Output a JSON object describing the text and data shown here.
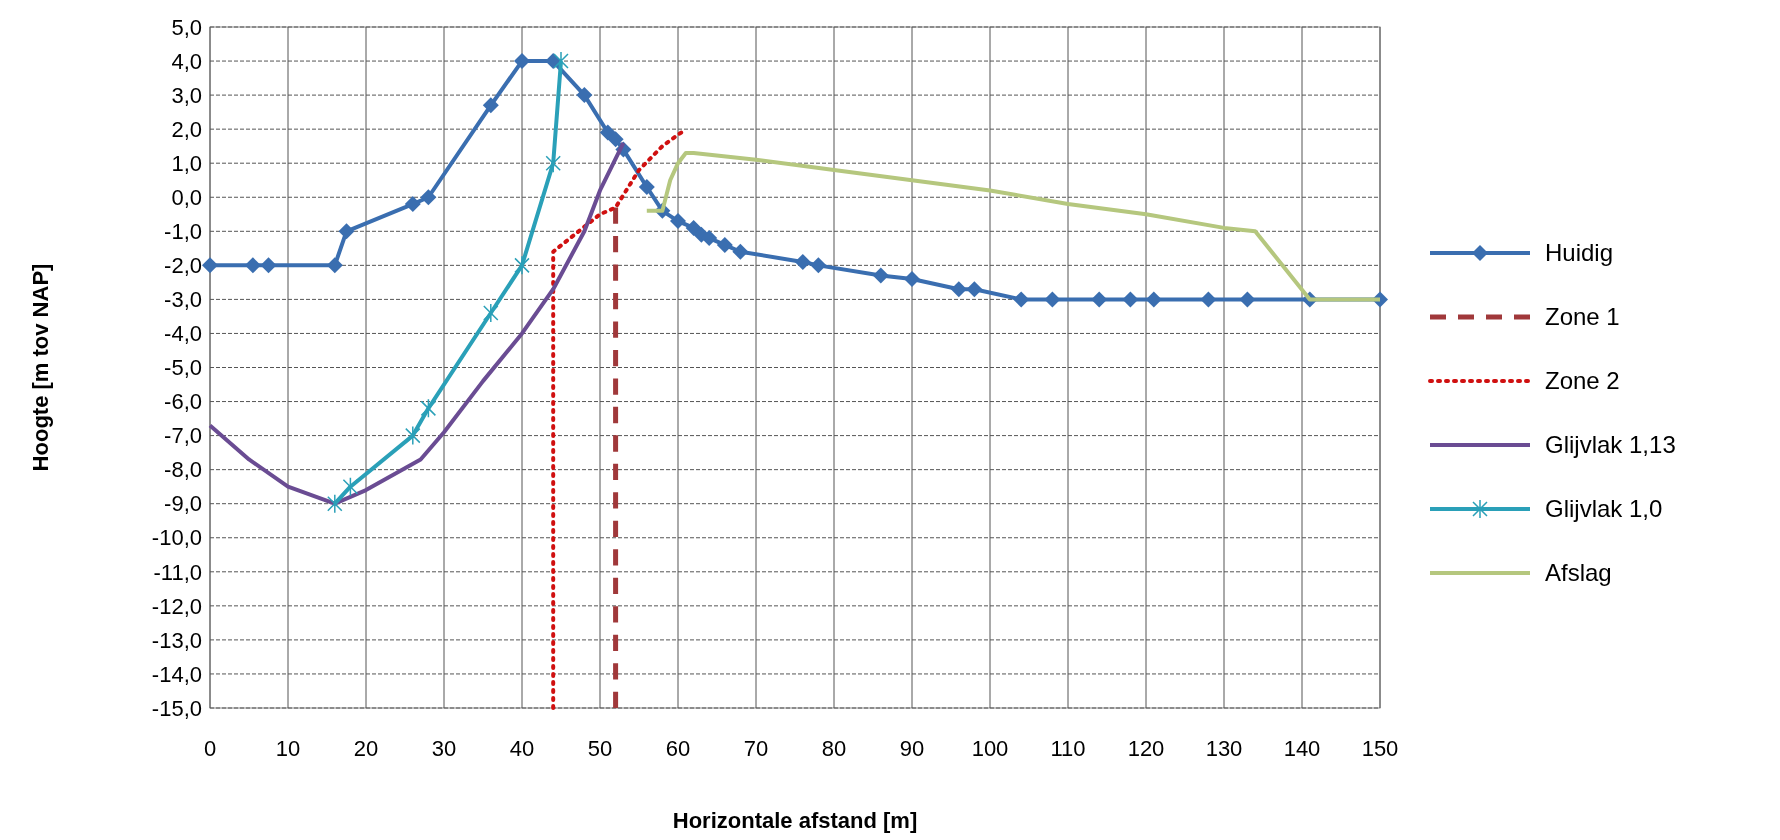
{
  "chart_data": {
    "type": "line",
    "xlabel": "Horizontale afstand [m]",
    "ylabel": "Hoogte [m tov NAP]",
    "xlim": [
      0,
      150
    ],
    "xticks": [
      0,
      10,
      20,
      30,
      40,
      50,
      60,
      70,
      80,
      90,
      100,
      110,
      120,
      130,
      140,
      150
    ],
    "ylim": [
      -15,
      5
    ],
    "yticks": [
      {
        "value": 5,
        "label": "5,0"
      },
      {
        "value": 4,
        "label": "4,0"
      },
      {
        "value": 3,
        "label": "3,0"
      },
      {
        "value": 2,
        "label": "2,0"
      },
      {
        "value": 1,
        "label": "1,0"
      },
      {
        "value": 0,
        "label": "0,0"
      },
      {
        "value": -1,
        "label": "-1,0"
      },
      {
        "value": -2,
        "label": "-2,0"
      },
      {
        "value": -3,
        "label": "-3,0"
      },
      {
        "value": -4,
        "label": "-4,0"
      },
      {
        "value": -5,
        "label": "-5,0"
      },
      {
        "value": -6,
        "label": "-6,0"
      },
      {
        "value": -7,
        "label": "-7,0"
      },
      {
        "value": -8,
        "label": "-8,0"
      },
      {
        "value": -9,
        "label": "-9,0"
      },
      {
        "value": -10,
        "label": "-10,0"
      },
      {
        "value": -11,
        "label": "-11,0"
      },
      {
        "value": -12,
        "label": "-12,0"
      },
      {
        "value": -13,
        "label": "-13,0"
      },
      {
        "value": -14,
        "label": "-14,0"
      },
      {
        "value": -15,
        "label": "-15,0"
      }
    ],
    "grid": true,
    "legend": "right",
    "series": [
      {
        "name": "Huidig",
        "color": "#3a6eb0",
        "marker": "diamond",
        "line_style": "solid",
        "x": [
          0,
          5.5,
          7.5,
          16,
          17.5,
          26,
          28,
          36,
          40,
          44,
          48,
          51,
          52,
          53,
          56,
          58,
          60,
          62,
          63,
          64,
          66,
          68,
          76,
          78,
          86,
          90,
          96,
          98,
          104,
          108,
          114,
          118,
          121,
          128,
          133,
          141,
          150
        ],
        "values": [
          -2,
          -2,
          -2,
          -2,
          -1,
          -0.2,
          0,
          2.7,
          4,
          4,
          3,
          1.9,
          1.7,
          1.4,
          0.3,
          -0.4,
          -0.7,
          -0.9,
          -1.1,
          -1.2,
          -1.4,
          -1.6,
          -1.9,
          -2,
          -2.3,
          -2.4,
          -2.7,
          -2.7,
          -3,
          -3,
          -3,
          -3,
          -3,
          -3,
          -3,
          -3,
          -3
        ]
      },
      {
        "name": "Zone 1",
        "color": "#a0383a",
        "marker": "none",
        "line_style": "dashed",
        "x": [
          52,
          52
        ],
        "values": [
          -15,
          -0.3
        ]
      },
      {
        "name": "Zone 2",
        "color": "#d01010",
        "marker": "none",
        "line_style": "dotted",
        "x": [
          44,
          44,
          50,
          52,
          55,
          58,
          61
        ],
        "values": [
          -15,
          -1.6,
          -0.5,
          -0.3,
          0.8,
          1.5,
          2
        ]
      },
      {
        "name": "Glijvlak 1,13",
        "color": "#6a4c93",
        "marker": "none",
        "line_style": "solid",
        "x": [
          0,
          5,
          10,
          16,
          20,
          27,
          30,
          35,
          40,
          44,
          48,
          50,
          53
        ],
        "values": [
          -6.7,
          -7.7,
          -8.5,
          -9,
          -8.6,
          -7.7,
          -6.9,
          -5.4,
          -4,
          -2.7,
          -1,
          0.2,
          1.6
        ]
      },
      {
        "name": "Glijvlak 1,0",
        "color": "#2aa0b8",
        "marker": "cross",
        "line_style": "solid",
        "x": [
          16,
          18,
          26,
          28,
          36,
          40,
          44,
          45
        ],
        "values": [
          -9,
          -8.5,
          -7,
          -6.2,
          -3.4,
          -2,
          1,
          4
        ]
      },
      {
        "name": "Afslag",
        "color": "#b5c77e",
        "marker": "none",
        "line_style": "solid",
        "x": [
          56,
          58,
          59,
          60,
          61,
          62,
          70,
          80,
          90,
          100,
          110,
          120,
          130,
          134,
          141,
          150
        ],
        "values": [
          -0.4,
          -0.4,
          0.5,
          1,
          1.3,
          1.3,
          1.1,
          0.8,
          0.5,
          0.2,
          -0.2,
          -0.5,
          -0.9,
          -1,
          -3,
          -3
        ]
      }
    ]
  }
}
